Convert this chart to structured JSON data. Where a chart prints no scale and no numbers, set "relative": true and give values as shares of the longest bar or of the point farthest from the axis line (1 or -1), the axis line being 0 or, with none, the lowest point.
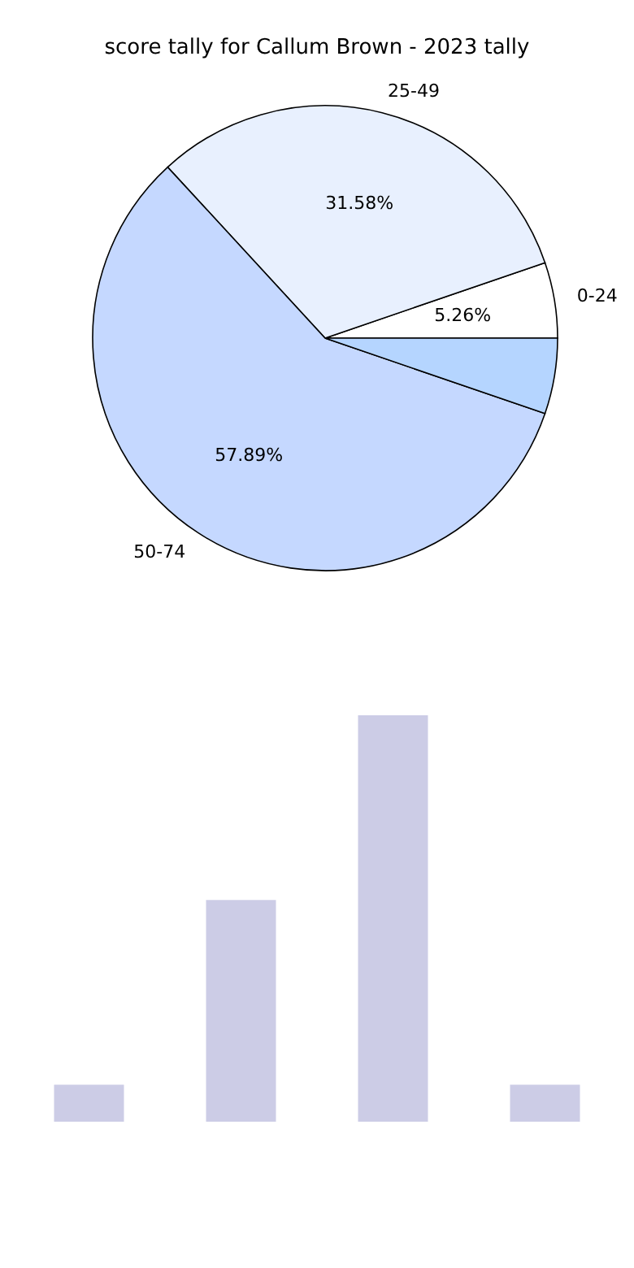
{
  "chart_data": [
    {
      "type": "pie",
      "title": "score tally for Callum Brown - 2023 tally",
      "categories": [
        "0-24",
        "25-49",
        "50-74",
        null
      ],
      "values": [
        5.26,
        31.58,
        57.89,
        5.26
      ],
      "colors": [
        "#ffffff",
        "#e8f0fe",
        "#c5d8ff",
        "#b5d5ff"
      ],
      "value_labels": [
        "5.26%",
        "31.58%",
        "57.89%",
        null
      ]
    },
    {
      "type": "bar",
      "categories": [
        null,
        null,
        null,
        null
      ],
      "values": [
        0.0909,
        0.5455,
        1,
        0.0909
      ],
      "color": "#cccce6",
      "relative": true
    }
  ]
}
